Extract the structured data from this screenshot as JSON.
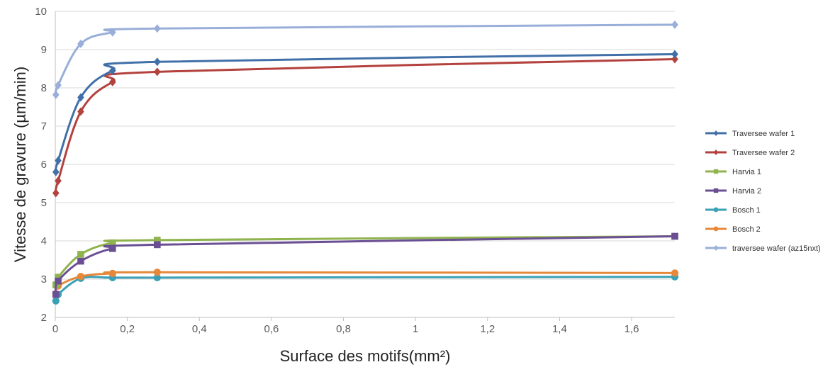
{
  "chart_data": {
    "type": "line",
    "xlabel": "Surface des motifs(mm²)",
    "ylabel": "Vitesse de gravure (µm/min)",
    "xlim": [
      0,
      1.72
    ],
    "ylim": [
      2,
      10
    ],
    "x_ticks": [
      0,
      0.2,
      0.4,
      0.6,
      0.8,
      1,
      1.2,
      1.4,
      1.6
    ],
    "x_tick_labels": [
      "0",
      "0,2",
      "0,4",
      "0,6",
      "0,8",
      "1",
      "1,2",
      "1,4",
      "1,6"
    ],
    "y_ticks": [
      2,
      3,
      4,
      5,
      6,
      7,
      8,
      9,
      10
    ],
    "y_tick_labels": [
      "2",
      "3",
      "4",
      "5",
      "6",
      "7",
      "8",
      "9",
      "10"
    ],
    "grid": "horizontal",
    "legend_position": "right",
    "series": [
      {
        "name": "Traversee wafer 1",
        "color": "#4170a8",
        "marker": "diamond",
        "x": [
          0.0016,
          0.0079,
          0.0707,
          0.159,
          0.283,
          1.72
        ],
        "y": [
          5.8,
          6.1,
          7.75,
          8.45,
          8.68,
          8.88
        ]
      },
      {
        "name": "Traversee wafer 2",
        "color": "#b3413d",
        "marker": "diamond",
        "x": [
          0.0016,
          0.0079,
          0.0707,
          0.159,
          0.283,
          1.72
        ],
        "y": [
          5.25,
          5.57,
          7.38,
          8.15,
          8.42,
          8.75
        ]
      },
      {
        "name": "Harvia 1",
        "color": "#8fb34e",
        "marker": "square",
        "x": [
          0.0016,
          0.0079,
          0.0707,
          0.159,
          0.283,
          1.72
        ],
        "y": [
          2.85,
          3.05,
          3.65,
          3.95,
          4.02,
          4.12
        ]
      },
      {
        "name": "Harvia 2",
        "color": "#6b4f94",
        "marker": "square",
        "x": [
          0.0016,
          0.0079,
          0.0707,
          0.159,
          0.283,
          1.72
        ],
        "y": [
          2.6,
          2.95,
          3.47,
          3.8,
          3.9,
          4.12
        ]
      },
      {
        "name": "Bosch 1",
        "color": "#3aa0b6",
        "marker": "circle",
        "x": [
          0.0016,
          0.0079,
          0.0707,
          0.159,
          0.283,
          1.72
        ],
        "y": [
          2.43,
          2.6,
          3.02,
          3.04,
          3.04,
          3.06
        ]
      },
      {
        "name": "Bosch 2",
        "color": "#e5883a",
        "marker": "circle",
        "x": [
          0.0016,
          0.0079,
          0.0707,
          0.159,
          0.283,
          1.72
        ],
        "y": [
          2.62,
          2.82,
          3.07,
          3.15,
          3.18,
          3.16
        ]
      },
      {
        "name": "traversee wafer (az15nxt)",
        "color": "#99aed8",
        "marker": "diamond",
        "x": [
          0.0016,
          0.0079,
          0.0707,
          0.159,
          0.283,
          1.72
        ],
        "y": [
          7.82,
          8.07,
          9.15,
          9.45,
          9.55,
          9.65
        ]
      }
    ]
  }
}
